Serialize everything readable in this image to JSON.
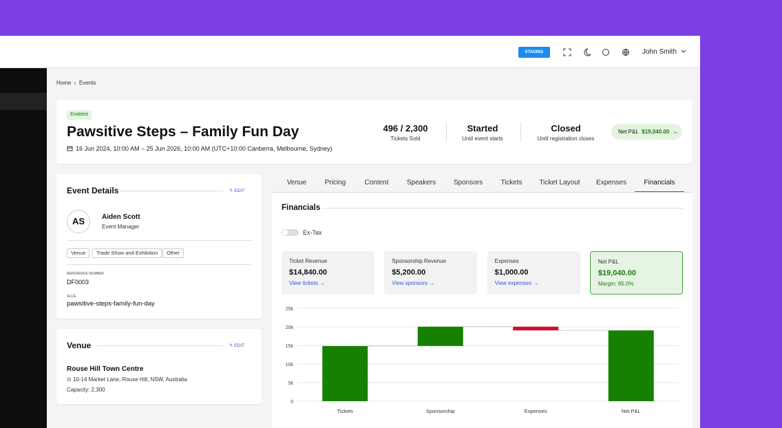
{
  "header": {
    "env_badge": "STAGING",
    "user": "John Smith"
  },
  "breadcrumb": [
    "Home",
    "Events"
  ],
  "event": {
    "status": "Enabled",
    "title": "Pawsitive Steps – Family Fun Day",
    "dates": "16 Jun 2024, 10:00 AM – 25 Jun 2026, 10:00 AM (UTC+10:00 Canberra, Melbourne, Sydney)",
    "stats": [
      {
        "value": "496 / 2,300",
        "label": "Tickets Sold"
      },
      {
        "value": "Started",
        "label": "Until event starts"
      },
      {
        "value": "Closed",
        "label": "Until registration closes"
      }
    ],
    "pnl": {
      "label": "Net P&L",
      "value": "$19,040.00"
    }
  },
  "details": {
    "title": "Event Details",
    "edit": "EDIT",
    "initials": "AS",
    "manager_name": "Aiden Scott",
    "manager_role": "Event Manager",
    "tags": [
      "Venue",
      "Trade Show and Exhibition",
      "Other"
    ],
    "reference_label": "REFERENCE NUMBER",
    "reference": "DF0003",
    "slug_label": "SLUG",
    "slug": "pawsitive-steps-family-fun-day"
  },
  "venue": {
    "title": "Venue",
    "edit": "EDIT",
    "name": "Rouse Hill Town Centre",
    "address": "10-14 Market Lane, Rouse Hill, NSW, Australia",
    "capacity": "Capacity: 2,300"
  },
  "tabs": [
    "Venue",
    "Pricing",
    "Content",
    "Speakers",
    "Sponsors",
    "Tickets",
    "Ticket Layout",
    "Expenses",
    "Financials"
  ],
  "active_tab": 8,
  "financials": {
    "title": "Financials",
    "toggle": "Ex-Tax",
    "cards": [
      {
        "label": "Ticket Revenue",
        "value": "$14,840.00",
        "link": "View tickets →"
      },
      {
        "label": "Sponsorship Revenue",
        "value": "$5,200.00",
        "link": "View sponsors →"
      },
      {
        "label": "Expenses",
        "value": "$1,000.00",
        "link": "View expenses →"
      },
      {
        "label": "Net P&L",
        "value": "$19,040.00",
        "note": "Margin: 95.0%"
      }
    ]
  },
  "chart_data": {
    "type": "waterfall",
    "categories": [
      "Tickets",
      "Sponsorship",
      "Expenses",
      "Net P&L"
    ],
    "values": [
      14840,
      5200,
      -1000,
      19040
    ],
    "color": "#168000",
    "decrease_color": "#d20f2b",
    "ylim": [
      0,
      25000
    ],
    "yticks": [
      0,
      {
        "value": 5000,
        "label": "5k"
      },
      {
        "value": 10000,
        "label": "10k"
      },
      {
        "value": 15000,
        "label": "15k"
      },
      {
        "value": 20000,
        "label": "20k"
      },
      {
        "value": 25000,
        "label": "25k"
      }
    ],
    "grid": true
  }
}
